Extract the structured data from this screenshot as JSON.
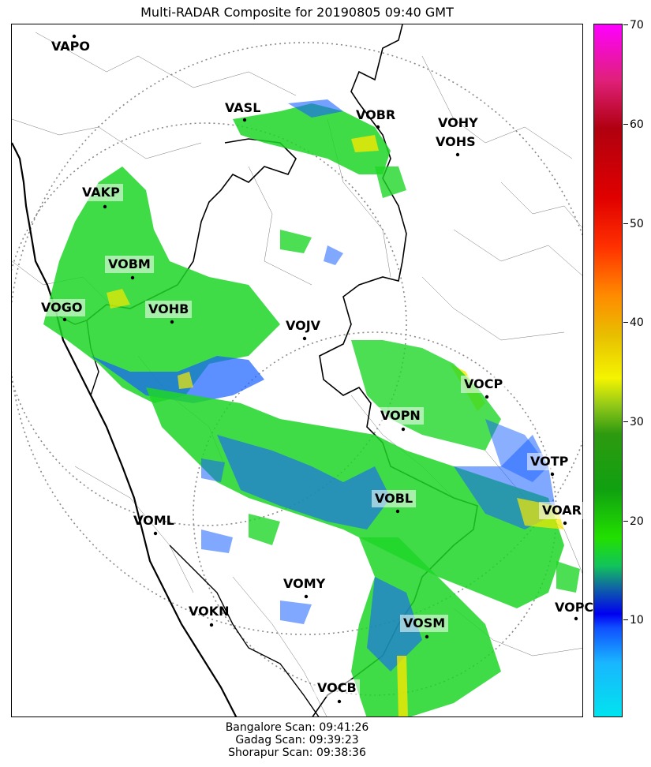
{
  "title": "Multi-RADAR Composite for 20190805 09:40 GMT",
  "colorbar": {
    "min": 0,
    "max": 70,
    "ticks": [
      "10",
      "20",
      "30",
      "40",
      "50",
      "60",
      "70"
    ]
  },
  "stations": [
    {
      "code": "VAPO"
    },
    {
      "code": "VASL"
    },
    {
      "code": "VOBR"
    },
    {
      "code": "VOHY"
    },
    {
      "code": "VOHS"
    },
    {
      "code": "VAKP"
    },
    {
      "code": "VOBM"
    },
    {
      "code": "VOGO"
    },
    {
      "code": "VOHB"
    },
    {
      "code": "VOJV"
    },
    {
      "code": "VOCP"
    },
    {
      "code": "VOPN"
    },
    {
      "code": "VOTP"
    },
    {
      "code": "VOBL"
    },
    {
      "code": "VOAR"
    },
    {
      "code": "VOML"
    },
    {
      "code": "VOMY"
    },
    {
      "code": "VOKN"
    },
    {
      "code": "VOPC"
    },
    {
      "code": "VOSM"
    },
    {
      "code": "VOCB"
    }
  ],
  "scans": [
    "Bangalore Scan: 09:41:26",
    "Gadag Scan: 09:39:23",
    "Shorapur Scan: 09:38:36"
  ]
}
